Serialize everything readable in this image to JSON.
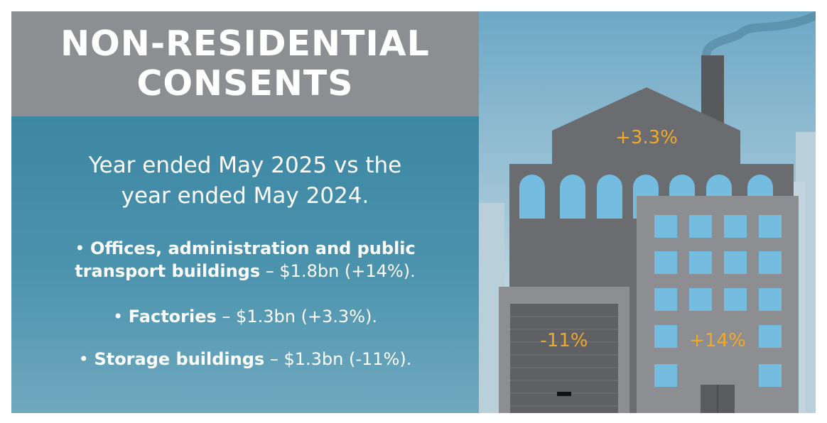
{
  "header": {
    "title_line1": "NON-RESIDENTIAL",
    "title_line2": "CONSENTS"
  },
  "body": {
    "subtitle_line1": "Year ended May 2025 vs the",
    "subtitle_line2": "year ended May 2024.",
    "bullets": [
      {
        "marker": "•",
        "label_line1": "Offices, administration and public",
        "label_line2": "transport buildings",
        "value": "– $1.8bn (+14%)."
      },
      {
        "marker": "•",
        "label_line1": "Factories",
        "value": "– $1.3bn (+3.3%)."
      },
      {
        "marker": "•",
        "label_line1": "Storage buildings",
        "value": "– $1.3bn (-11%)."
      }
    ]
  },
  "illustration": {
    "factory_change": "+3.3%",
    "storage_change": "-11%",
    "office_change": "+14%",
    "colors": {
      "header_grey": "#8d8e91",
      "panel_blue": "#3c87a4",
      "label_orange": "#f0a929",
      "window_blue": "#74bde0"
    }
  }
}
